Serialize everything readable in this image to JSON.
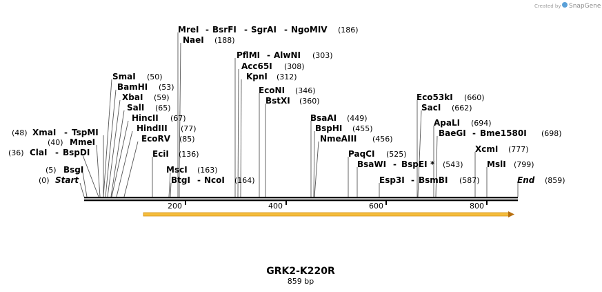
{
  "credit": {
    "prefix": "Created by",
    "brand": "SnapGene"
  },
  "plasmid": {
    "name": "GRK2-K220R",
    "size_label": "859 bp"
  },
  "ticks": [
    "200",
    "400",
    "600",
    "800"
  ],
  "labels": [
    {
      "name": "MreI",
      "sep": "-",
      "num": "(186)"
    },
    {
      "name": "BsrFI",
      "sep": "-"
    },
    {
      "name": "SgrAI",
      "sep": "-"
    },
    {
      "name": "NgoMIV"
    },
    {
      "name": "NaeI",
      "num": "(188)"
    },
    {
      "name": "PflMI",
      "sep": "-",
      "num": "(303)"
    },
    {
      "name": "AlwNI"
    },
    {
      "name": "Acc65I",
      "num": "(308)"
    },
    {
      "name": "KpnI",
      "num": "(312)"
    },
    {
      "name": "EcoNI",
      "num": "(346)"
    },
    {
      "name": "BstXI",
      "num": "(360)"
    },
    {
      "name": "SmaI",
      "num": "(50)"
    },
    {
      "name": "BamHI",
      "num": "(53)"
    },
    {
      "name": "XbaI",
      "num": "(59)"
    },
    {
      "name": "SalI",
      "num": "(65)"
    },
    {
      "name": "HincII",
      "num": "(67)"
    },
    {
      "name": "HindIII",
      "num": "(77)"
    },
    {
      "name": "EcoRV",
      "num": "(85)"
    },
    {
      "name": "EciI",
      "num": "(136)"
    },
    {
      "name": "MscI",
      "num": "(163)"
    },
    {
      "name": "BtgI",
      "sep": "-",
      "num": "(164)"
    },
    {
      "name": "NcoI"
    },
    {
      "name": "XmaI",
      "sep": "-",
      "num": "(48)"
    },
    {
      "name": "TspMI"
    },
    {
      "name": "MmeI",
      "num": "(40)"
    },
    {
      "name": "ClaI",
      "sep": "-",
      "num": "(36)"
    },
    {
      "name": "BspDI"
    },
    {
      "name": "BsgI",
      "num": "(5)"
    },
    {
      "name": "Start",
      "num": "(0)"
    },
    {
      "name": "BsaAI",
      "num": "(449)"
    },
    {
      "name": "BspHI",
      "num": "(455)"
    },
    {
      "name": "NmeAIII",
      "num": "(456)"
    },
    {
      "name": "PaqCI",
      "num": "(525)"
    },
    {
      "name": "BsaWI",
      "sep": "-"
    },
    {
      "name": "BspEI",
      "mark": "*",
      "num": "(543)"
    },
    {
      "name": "Esp3I",
      "sep": "-"
    },
    {
      "name": "BsmBI",
      "num": "(587)"
    },
    {
      "name": "Eco53kI",
      "num": "(660)"
    },
    {
      "name": "SacI",
      "num": "(662)"
    },
    {
      "name": "ApaLI",
      "num": "(694)"
    },
    {
      "name": "BaeGI",
      "sep": "-",
      "num": "(698)"
    },
    {
      "name": "Bme1580I"
    },
    {
      "name": "XcmI",
      "num": "(777)"
    },
    {
      "name": "MslI",
      "num": "(799)"
    },
    {
      "name": "End",
      "num": "(859)"
    }
  ]
}
